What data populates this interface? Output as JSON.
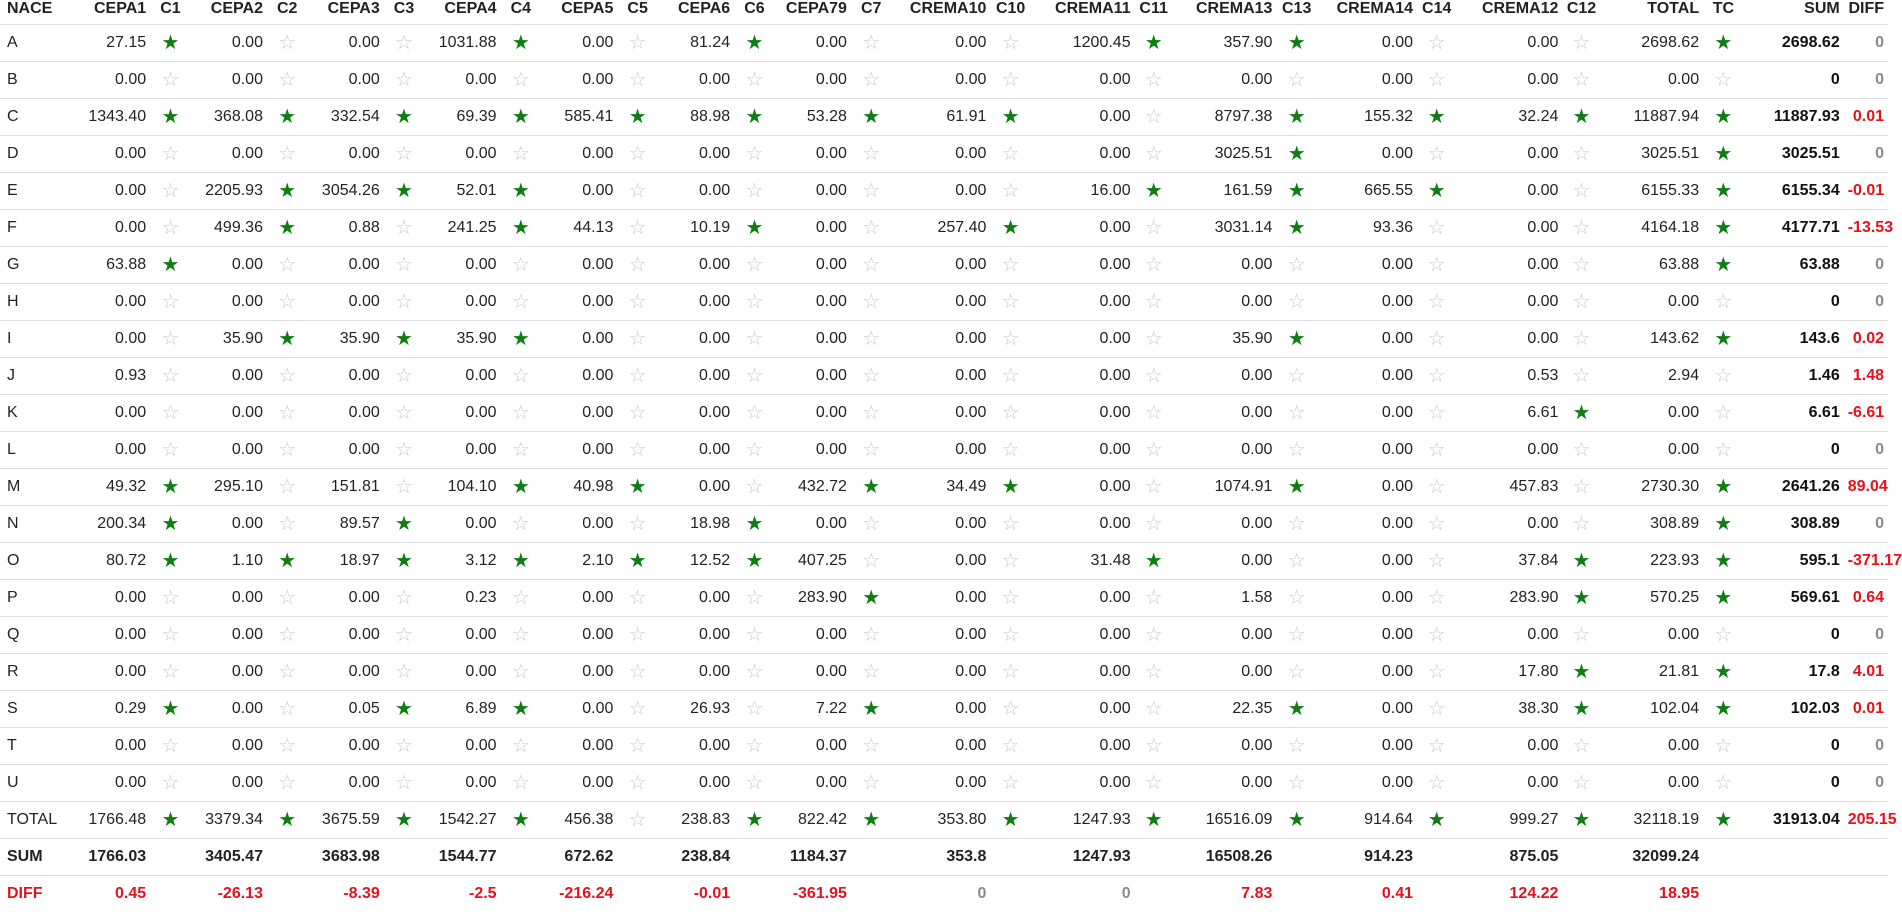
{
  "columns": [
    "NACE",
    "CEPA1",
    "C1",
    "CEPA2",
    "C2",
    "CEPA3",
    "C3",
    "CEPA4",
    "C4",
    "CEPA5",
    "C5",
    "CEPA6",
    "C6",
    "CEPA79",
    "C7",
    "CREMA10",
    "C10",
    "CREMA11",
    "C11",
    "CREMA13",
    "C13",
    "CREMA14",
    "C14",
    "CREMA12",
    "C12",
    "TOTAL",
    "TC",
    "SUM",
    "DIFF"
  ],
  "star_glyph_on": "★",
  "star_glyph_off": "☆",
  "colors": {
    "star_on": "#0e7d12",
    "star_off": "#c8c8c8",
    "diff_nonzero": "#e8101a",
    "diff_zero": "#8a8a8a"
  },
  "rows": [
    {
      "nace": "A",
      "vals": [
        "27.15",
        "0.00",
        "0.00",
        "1031.88",
        "0.00",
        "81.24",
        "0.00",
        "0.00",
        "1200.45",
        "357.90",
        "0.00",
        "0.00"
      ],
      "flags": [
        1,
        0,
        0,
        1,
        0,
        1,
        0,
        0,
        1,
        1,
        0,
        0
      ],
      "total": "2698.62",
      "tc": 1,
      "sum": "2698.62",
      "diff": "0"
    },
    {
      "nace": "B",
      "vals": [
        "0.00",
        "0.00",
        "0.00",
        "0.00",
        "0.00",
        "0.00",
        "0.00",
        "0.00",
        "0.00",
        "0.00",
        "0.00",
        "0.00"
      ],
      "flags": [
        0,
        0,
        0,
        0,
        0,
        0,
        0,
        0,
        0,
        0,
        0,
        0
      ],
      "total": "0.00",
      "tc": 0,
      "sum": "0",
      "diff": "0"
    },
    {
      "nace": "C",
      "vals": [
        "1343.40",
        "368.08",
        "332.54",
        "69.39",
        "585.41",
        "88.98",
        "53.28",
        "61.91",
        "0.00",
        "8797.38",
        "155.32",
        "32.24"
      ],
      "flags": [
        1,
        1,
        1,
        1,
        1,
        1,
        1,
        1,
        0,
        1,
        1,
        1
      ],
      "total": "11887.94",
      "tc": 1,
      "sum": "11887.93",
      "diff": "0.01"
    },
    {
      "nace": "D",
      "vals": [
        "0.00",
        "0.00",
        "0.00",
        "0.00",
        "0.00",
        "0.00",
        "0.00",
        "0.00",
        "0.00",
        "3025.51",
        "0.00",
        "0.00"
      ],
      "flags": [
        0,
        0,
        0,
        0,
        0,
        0,
        0,
        0,
        0,
        1,
        0,
        0
      ],
      "total": "3025.51",
      "tc": 1,
      "sum": "3025.51",
      "diff": "0"
    },
    {
      "nace": "E",
      "vals": [
        "0.00",
        "2205.93",
        "3054.26",
        "52.01",
        "0.00",
        "0.00",
        "0.00",
        "0.00",
        "16.00",
        "161.59",
        "665.55",
        "0.00"
      ],
      "flags": [
        0,
        1,
        1,
        1,
        0,
        0,
        0,
        0,
        1,
        1,
        1,
        0
      ],
      "total": "6155.33",
      "tc": 1,
      "sum": "6155.34",
      "diff": "-0.01"
    },
    {
      "nace": "F",
      "vals": [
        "0.00",
        "499.36",
        "0.88",
        "241.25",
        "44.13",
        "10.19",
        "0.00",
        "257.40",
        "0.00",
        "3031.14",
        "93.36",
        "0.00"
      ],
      "flags": [
        0,
        1,
        0,
        1,
        0,
        1,
        0,
        1,
        0,
        1,
        0,
        0
      ],
      "total": "4164.18",
      "tc": 1,
      "sum": "4177.71",
      "diff": "-13.53"
    },
    {
      "nace": "G",
      "vals": [
        "63.88",
        "0.00",
        "0.00",
        "0.00",
        "0.00",
        "0.00",
        "0.00",
        "0.00",
        "0.00",
        "0.00",
        "0.00",
        "0.00"
      ],
      "flags": [
        1,
        0,
        0,
        0,
        0,
        0,
        0,
        0,
        0,
        0,
        0,
        0
      ],
      "total": "63.88",
      "tc": 1,
      "sum": "63.88",
      "diff": "0"
    },
    {
      "nace": "H",
      "vals": [
        "0.00",
        "0.00",
        "0.00",
        "0.00",
        "0.00",
        "0.00",
        "0.00",
        "0.00",
        "0.00",
        "0.00",
        "0.00",
        "0.00"
      ],
      "flags": [
        0,
        0,
        0,
        0,
        0,
        0,
        0,
        0,
        0,
        0,
        0,
        0
      ],
      "total": "0.00",
      "tc": 0,
      "sum": "0",
      "diff": "0"
    },
    {
      "nace": "I",
      "vals": [
        "0.00",
        "35.90",
        "35.90",
        "35.90",
        "0.00",
        "0.00",
        "0.00",
        "0.00",
        "0.00",
        "35.90",
        "0.00",
        "0.00"
      ],
      "flags": [
        0,
        1,
        1,
        1,
        0,
        0,
        0,
        0,
        0,
        1,
        0,
        0
      ],
      "total": "143.62",
      "tc": 1,
      "sum": "143.6",
      "diff": "0.02"
    },
    {
      "nace": "J",
      "vals": [
        "0.93",
        "0.00",
        "0.00",
        "0.00",
        "0.00",
        "0.00",
        "0.00",
        "0.00",
        "0.00",
        "0.00",
        "0.00",
        "0.53"
      ],
      "flags": [
        0,
        0,
        0,
        0,
        0,
        0,
        0,
        0,
        0,
        0,
        0,
        0
      ],
      "total": "2.94",
      "tc": 0,
      "sum": "1.46",
      "diff": "1.48"
    },
    {
      "nace": "K",
      "vals": [
        "0.00",
        "0.00",
        "0.00",
        "0.00",
        "0.00",
        "0.00",
        "0.00",
        "0.00",
        "0.00",
        "0.00",
        "0.00",
        "6.61"
      ],
      "flags": [
        0,
        0,
        0,
        0,
        0,
        0,
        0,
        0,
        0,
        0,
        0,
        1
      ],
      "total": "0.00",
      "tc": 0,
      "sum": "6.61",
      "diff": "-6.61"
    },
    {
      "nace": "L",
      "vals": [
        "0.00",
        "0.00",
        "0.00",
        "0.00",
        "0.00",
        "0.00",
        "0.00",
        "0.00",
        "0.00",
        "0.00",
        "0.00",
        "0.00"
      ],
      "flags": [
        0,
        0,
        0,
        0,
        0,
        0,
        0,
        0,
        0,
        0,
        0,
        0
      ],
      "total": "0.00",
      "tc": 0,
      "sum": "0",
      "diff": "0"
    },
    {
      "nace": "M",
      "vals": [
        "49.32",
        "295.10",
        "151.81",
        "104.10",
        "40.98",
        "0.00",
        "432.72",
        "34.49",
        "0.00",
        "1074.91",
        "0.00",
        "457.83"
      ],
      "flags": [
        1,
        0,
        0,
        1,
        1,
        0,
        1,
        1,
        0,
        1,
        0,
        0
      ],
      "total": "2730.30",
      "tc": 1,
      "sum": "2641.26",
      "diff": "89.04"
    },
    {
      "nace": "N",
      "vals": [
        "200.34",
        "0.00",
        "89.57",
        "0.00",
        "0.00",
        "18.98",
        "0.00",
        "0.00",
        "0.00",
        "0.00",
        "0.00",
        "0.00"
      ],
      "flags": [
        1,
        0,
        1,
        0,
        0,
        1,
        0,
        0,
        0,
        0,
        0,
        0
      ],
      "total": "308.89",
      "tc": 1,
      "sum": "308.89",
      "diff": "0"
    },
    {
      "nace": "O",
      "vals": [
        "80.72",
        "1.10",
        "18.97",
        "3.12",
        "2.10",
        "12.52",
        "407.25",
        "0.00",
        "31.48",
        "0.00",
        "0.00",
        "37.84"
      ],
      "flags": [
        1,
        1,
        1,
        1,
        1,
        1,
        0,
        0,
        1,
        0,
        0,
        1
      ],
      "total": "223.93",
      "tc": 1,
      "sum": "595.1",
      "diff": "-371.17"
    },
    {
      "nace": "P",
      "vals": [
        "0.00",
        "0.00",
        "0.00",
        "0.23",
        "0.00",
        "0.00",
        "283.90",
        "0.00",
        "0.00",
        "1.58",
        "0.00",
        "283.90"
      ],
      "flags": [
        0,
        0,
        0,
        0,
        0,
        0,
        1,
        0,
        0,
        0,
        0,
        1
      ],
      "total": "570.25",
      "tc": 1,
      "sum": "569.61",
      "diff": "0.64"
    },
    {
      "nace": "Q",
      "vals": [
        "0.00",
        "0.00",
        "0.00",
        "0.00",
        "0.00",
        "0.00",
        "0.00",
        "0.00",
        "0.00",
        "0.00",
        "0.00",
        "0.00"
      ],
      "flags": [
        0,
        0,
        0,
        0,
        0,
        0,
        0,
        0,
        0,
        0,
        0,
        0
      ],
      "total": "0.00",
      "tc": 0,
      "sum": "0",
      "diff": "0"
    },
    {
      "nace": "R",
      "vals": [
        "0.00",
        "0.00",
        "0.00",
        "0.00",
        "0.00",
        "0.00",
        "0.00",
        "0.00",
        "0.00",
        "0.00",
        "0.00",
        "17.80"
      ],
      "flags": [
        0,
        0,
        0,
        0,
        0,
        0,
        0,
        0,
        0,
        0,
        0,
        1
      ],
      "total": "21.81",
      "tc": 1,
      "sum": "17.8",
      "diff": "4.01"
    },
    {
      "nace": "S",
      "vals": [
        "0.29",
        "0.00",
        "0.05",
        "6.89",
        "0.00",
        "26.93",
        "7.22",
        "0.00",
        "0.00",
        "22.35",
        "0.00",
        "38.30"
      ],
      "flags": [
        1,
        0,
        1,
        1,
        0,
        0,
        1,
        0,
        0,
        1,
        0,
        1
      ],
      "total": "102.04",
      "tc": 1,
      "sum": "102.03",
      "diff": "0.01"
    },
    {
      "nace": "T",
      "vals": [
        "0.00",
        "0.00",
        "0.00",
        "0.00",
        "0.00",
        "0.00",
        "0.00",
        "0.00",
        "0.00",
        "0.00",
        "0.00",
        "0.00"
      ],
      "flags": [
        0,
        0,
        0,
        0,
        0,
        0,
        0,
        0,
        0,
        0,
        0,
        0
      ],
      "total": "0.00",
      "tc": 0,
      "sum": "0",
      "diff": "0"
    },
    {
      "nace": "U",
      "vals": [
        "0.00",
        "0.00",
        "0.00",
        "0.00",
        "0.00",
        "0.00",
        "0.00",
        "0.00",
        "0.00",
        "0.00",
        "0.00",
        "0.00"
      ],
      "flags": [
        0,
        0,
        0,
        0,
        0,
        0,
        0,
        0,
        0,
        0,
        0,
        0
      ],
      "total": "0.00",
      "tc": 0,
      "sum": "0",
      "diff": "0"
    },
    {
      "nace": "TOTAL",
      "vals": [
        "1766.48",
        "3379.34",
        "3675.59",
        "1542.27",
        "456.38",
        "238.83",
        "822.42",
        "353.80",
        "1247.93",
        "16516.09",
        "914.64",
        "999.27"
      ],
      "flags": [
        1,
        1,
        1,
        1,
        0,
        1,
        1,
        1,
        1,
        1,
        1,
        1
      ],
      "total": "32118.19",
      "tc": 1,
      "sum": "31913.04",
      "diff": "205.15"
    }
  ],
  "sum_row": {
    "label": "SUM",
    "vals": [
      "1766.03",
      "3405.47",
      "3683.98",
      "1544.77",
      "672.62",
      "238.84",
      "1184.37",
      "353.8",
      "1247.93",
      "16508.26",
      "914.23",
      "875.05"
    ],
    "total": "32099.24"
  },
  "diff_row": {
    "label": "DIFF",
    "vals": [
      "0.45",
      "-26.13",
      "-8.39",
      "-2.5",
      "-216.24",
      "-0.01",
      "-361.95",
      "0",
      "0",
      "7.83",
      "0.41",
      "124.22"
    ],
    "total": "18.95"
  }
}
